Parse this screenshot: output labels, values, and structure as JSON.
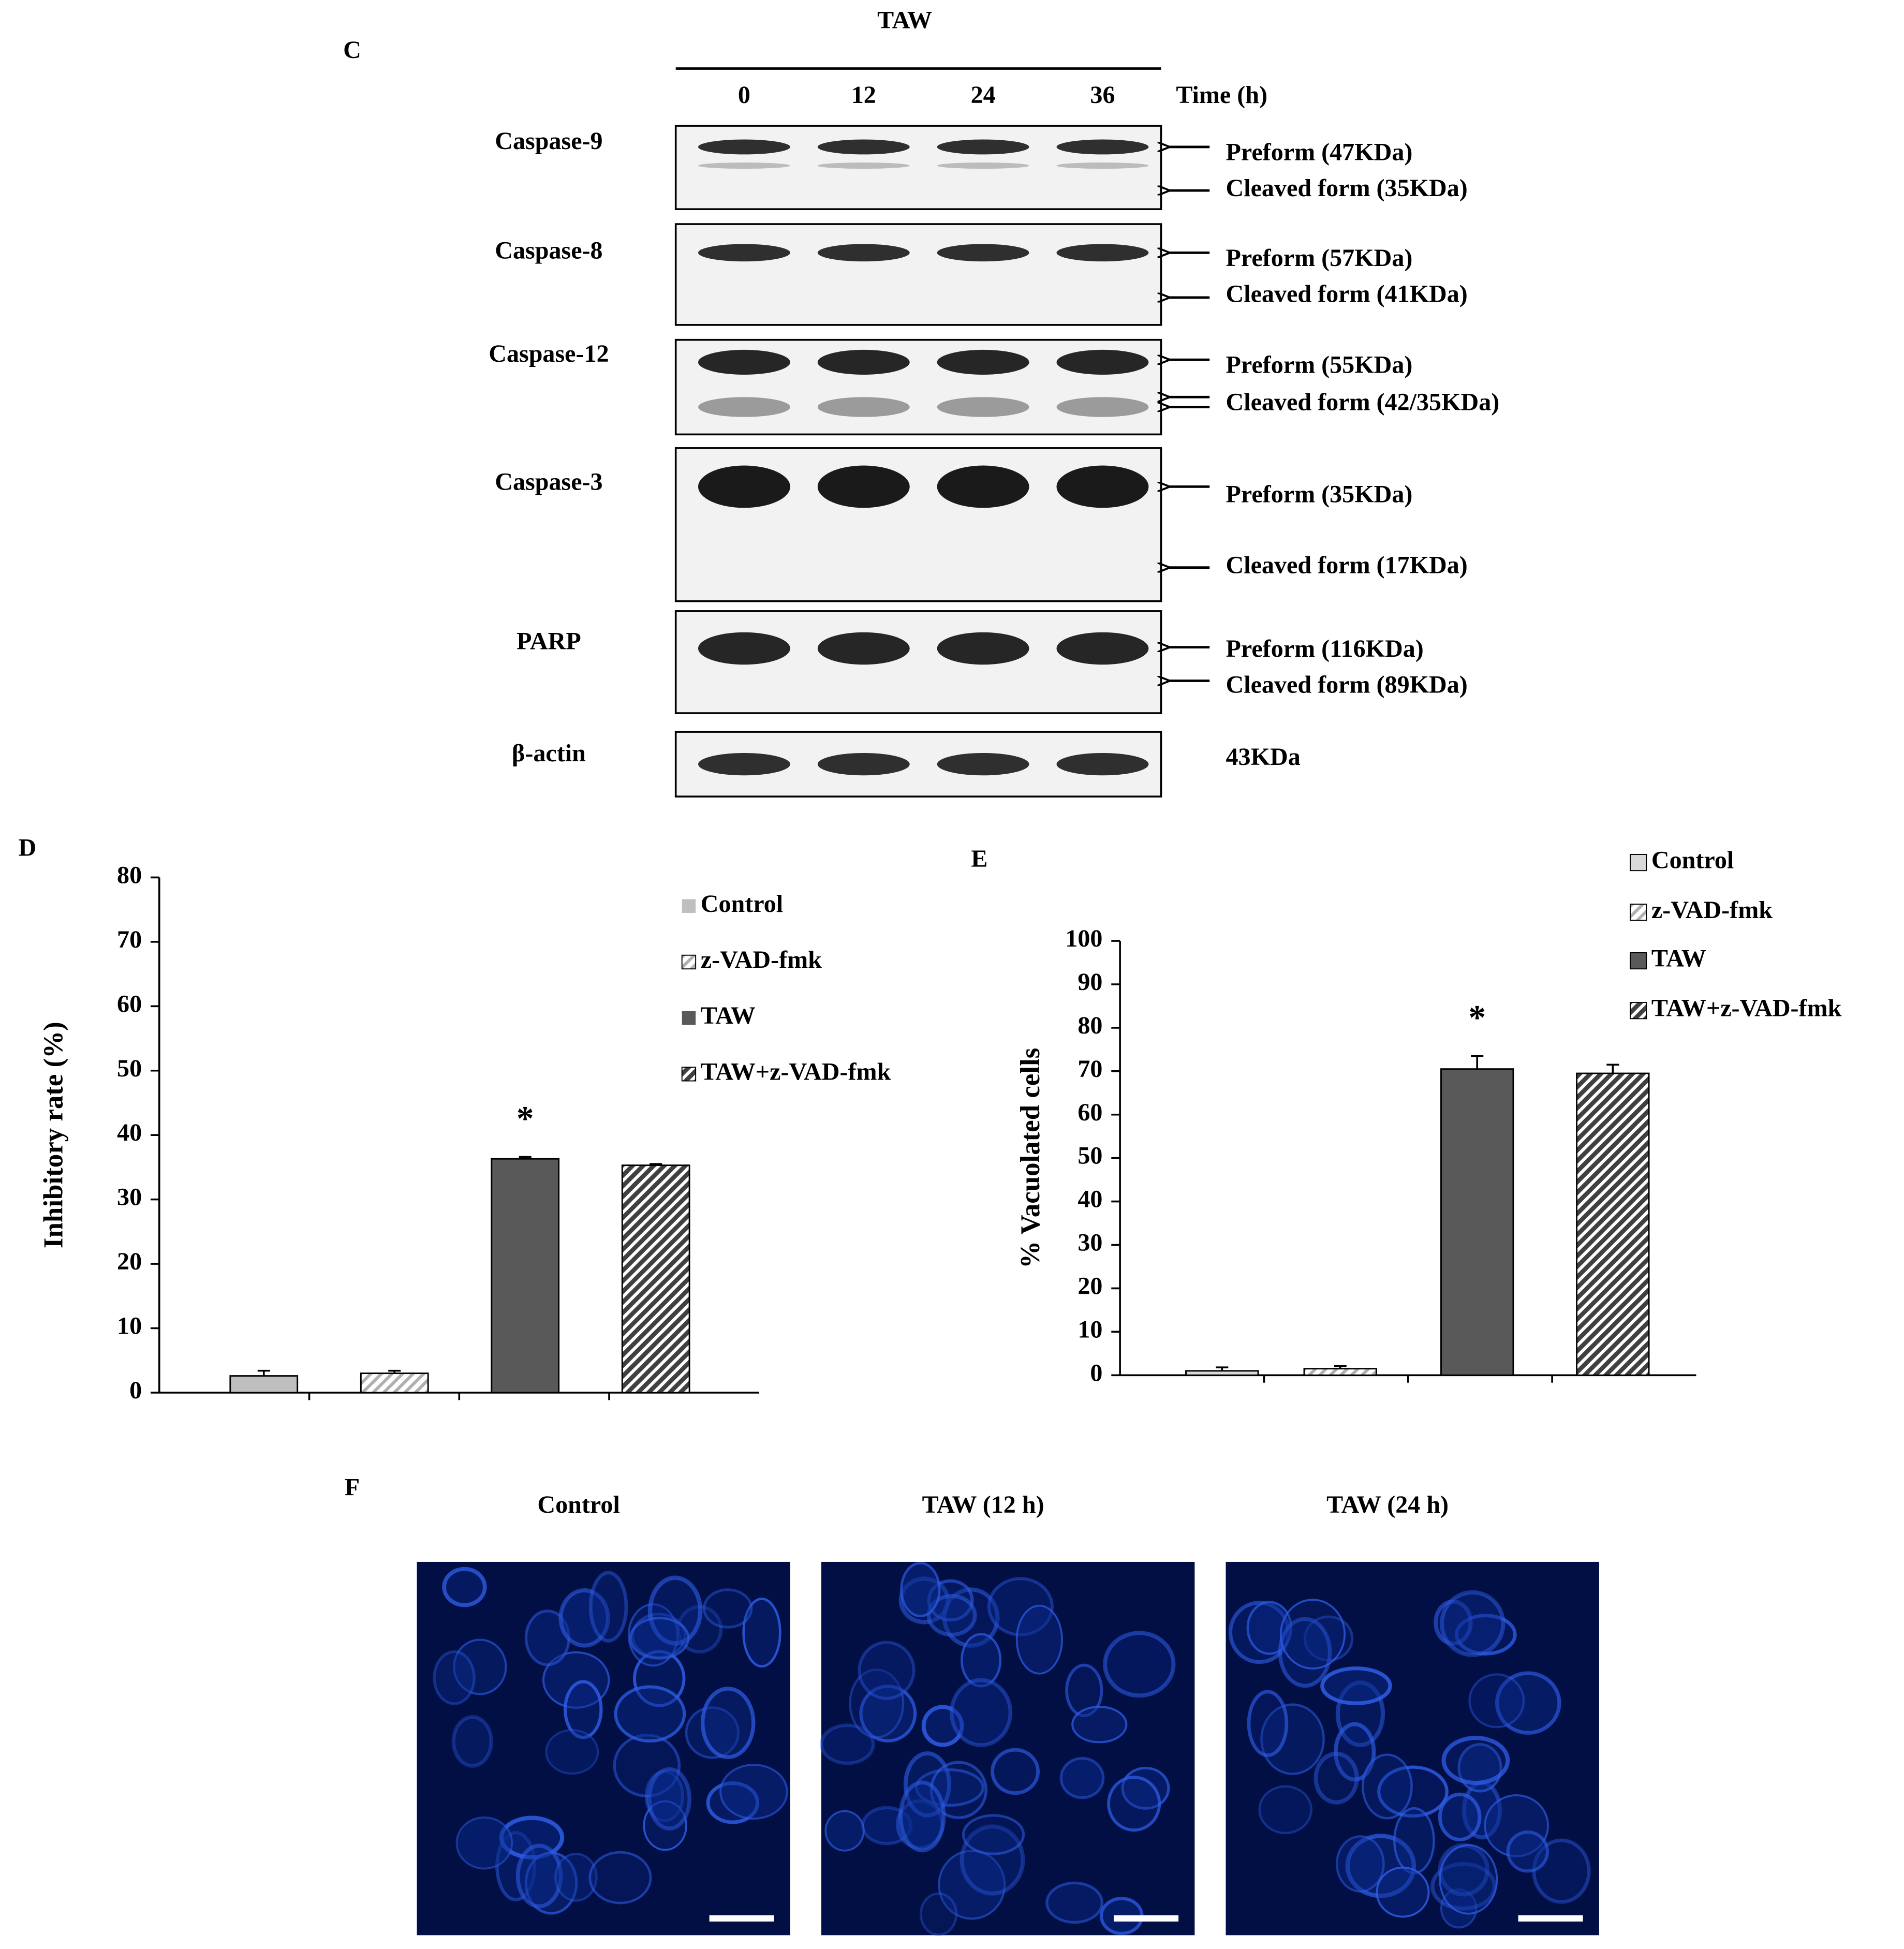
{
  "panel_c": {
    "label": "C",
    "treatment": "TAW",
    "times": [
      "0",
      "12",
      "24",
      "36"
    ],
    "time_unit": "Time (h)",
    "rows": [
      {
        "label": "Caspase-9",
        "forms": [
          "Preform (47KDa)",
          "Cleaved form (35KDa)"
        ]
      },
      {
        "label": "Caspase-8",
        "forms": [
          "Preform (57KDa)",
          "Cleaved form (41KDa)"
        ]
      },
      {
        "label": "Caspase-12",
        "forms": [
          "Preform (55KDa)",
          "Cleaved form (42/35KDa)"
        ]
      },
      {
        "label": "Caspase-3",
        "forms": [
          "Preform (35KDa)",
          "Cleaved form (17KDa)"
        ]
      },
      {
        "label": "PARP",
        "forms": [
          "Preform (116KDa)",
          "Cleaved form (89KDa)"
        ]
      },
      {
        "label": "β-actin",
        "forms": [
          "43KDa"
        ]
      }
    ]
  },
  "chart_data": [
    {
      "type": "bar",
      "label": "D",
      "ylabel": "Inhibitory rate (%)",
      "ylim": [
        0,
        80
      ],
      "yticks": [
        0,
        10,
        20,
        30,
        40,
        50,
        60,
        70,
        80
      ],
      "series": [
        {
          "name": "Control",
          "color": "#bfbfbf",
          "values": [
            2.6
          ],
          "errors": [
            0.8
          ]
        },
        {
          "name": "z-VAD-fmk",
          "color": "#d9d9d9",
          "hatch": "light",
          "values": [
            3.0
          ],
          "errors": [
            0.4
          ]
        },
        {
          "name": "TAW",
          "color": "#595959",
          "values": [
            36.3
          ],
          "errors": [
            0.3
          ],
          "annotation": "*"
        },
        {
          "name": "TAW+z-VAD-fmk",
          "color": "#404040",
          "hatch": "dense",
          "values": [
            35.3
          ],
          "errors": [
            0.2
          ]
        }
      ]
    },
    {
      "type": "bar",
      "label": "E",
      "ylabel": "% Vacuolated cells",
      "ylim": [
        0,
        100
      ],
      "yticks": [
        0,
        10,
        20,
        30,
        40,
        50,
        60,
        70,
        80,
        90,
        100
      ],
      "series": [
        {
          "name": "Control",
          "color": "#d9d9d9",
          "values": [
            1.0
          ],
          "errors": [
            0.8
          ]
        },
        {
          "name": "z-VAD-fmk",
          "color": "#e8e8e8",
          "hatch": "light",
          "values": [
            1.5
          ],
          "errors": [
            0.6
          ]
        },
        {
          "name": "TAW",
          "color": "#595959",
          "values": [
            70.5
          ],
          "errors": [
            3.0
          ],
          "annotation": "*"
        },
        {
          "name": "TAW+z-VAD-fmk",
          "color": "#404040",
          "hatch": "dense",
          "values": [
            69.5
          ],
          "errors": [
            2.0
          ]
        }
      ]
    }
  ],
  "panel_f": {
    "label": "F",
    "images": [
      "Control",
      "TAW (12 h)",
      "TAW (24 h)"
    ]
  }
}
